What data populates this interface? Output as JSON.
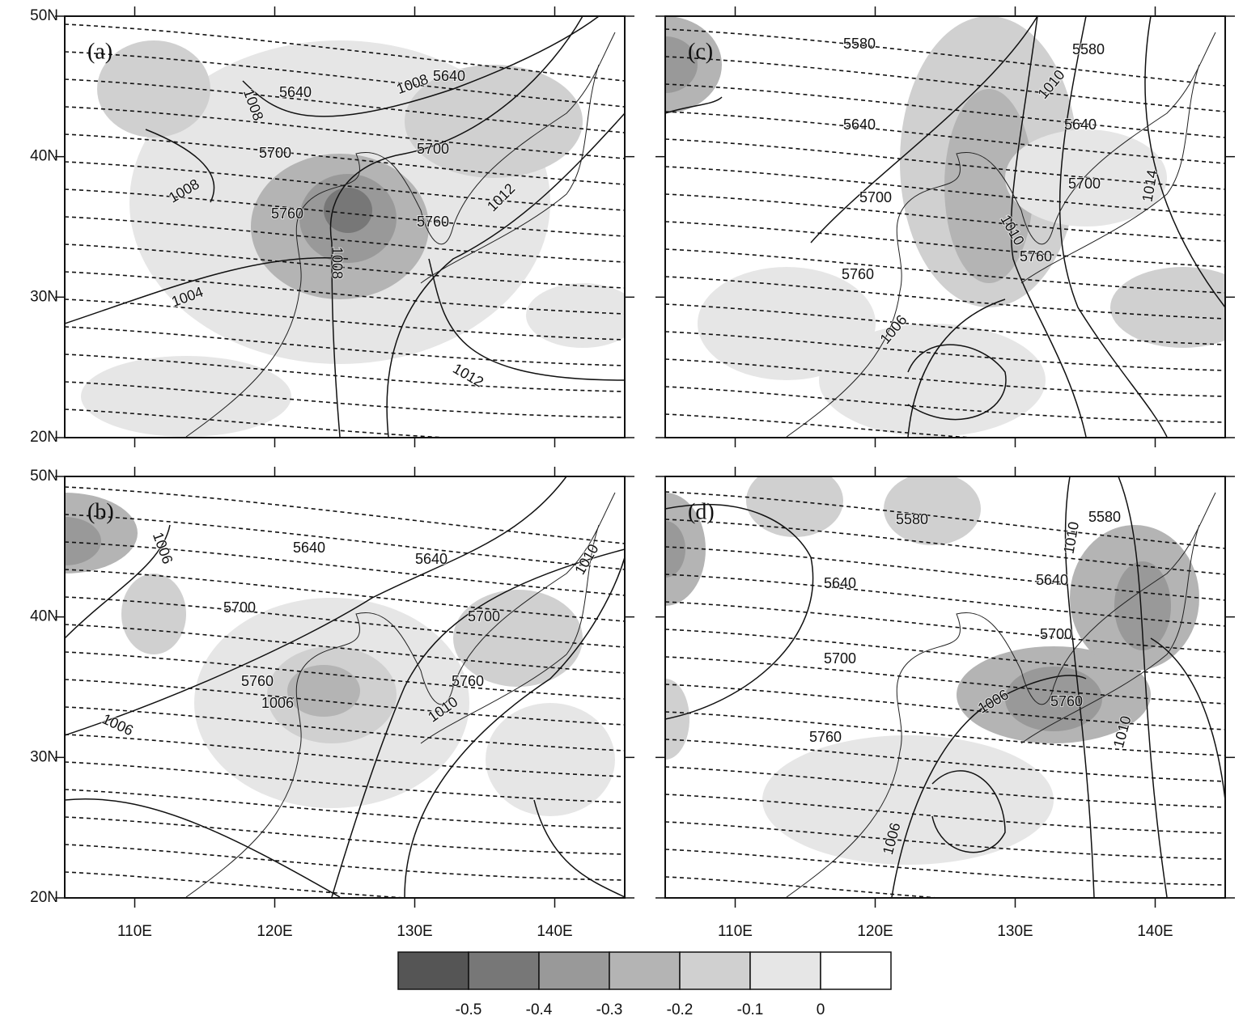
{
  "map": {
    "lonlim": [
      105,
      145
    ],
    "latlim": [
      20,
      50
    ],
    "lon_ticks": [
      {
        "value": 110,
        "label": "110E"
      },
      {
        "value": 120,
        "label": "120E"
      },
      {
        "value": 130,
        "label": "130E"
      },
      {
        "value": 140,
        "label": "140E"
      }
    ],
    "lat_ticks": [
      {
        "value": 20,
        "label": "20N"
      },
      {
        "value": 30,
        "label": "30N"
      },
      {
        "value": 40,
        "label": "40N"
      },
      {
        "value": 50,
        "label": "50N"
      }
    ]
  },
  "panels": [
    {
      "label": "(a)",
      "contour_labels": [
        5640,
        1008,
        1008,
        5640,
        5700,
        5700,
        1008,
        5760,
        1008,
        5760,
        1012,
        1004,
        1012
      ]
    },
    {
      "label": "(b)",
      "contour_labels": [
        1006,
        5640,
        5640,
        1010,
        5700,
        5700,
        5760,
        1006,
        5760,
        1010,
        1006
      ]
    },
    {
      "label": "(c)",
      "contour_labels": [
        5580,
        5580,
        1010,
        5640,
        5640,
        5700,
        5700,
        1014,
        1010,
        5760,
        5760,
        1006
      ]
    },
    {
      "label": "(d)",
      "contour_labels": [
        5580,
        5580,
        1010,
        5640,
        5640,
        5700,
        5700,
        1006,
        5760,
        1010,
        5760,
        1006
      ]
    }
  ],
  "colorbar": {
    "levels": [
      -0.5,
      -0.4,
      -0.3,
      -0.2,
      -0.1,
      0
    ],
    "colors": [
      "#555555",
      "#777777",
      "#999999",
      "#b4b4b4",
      "#d0d0d0",
      "#e6e6e6",
      "#ffffff"
    ]
  }
}
